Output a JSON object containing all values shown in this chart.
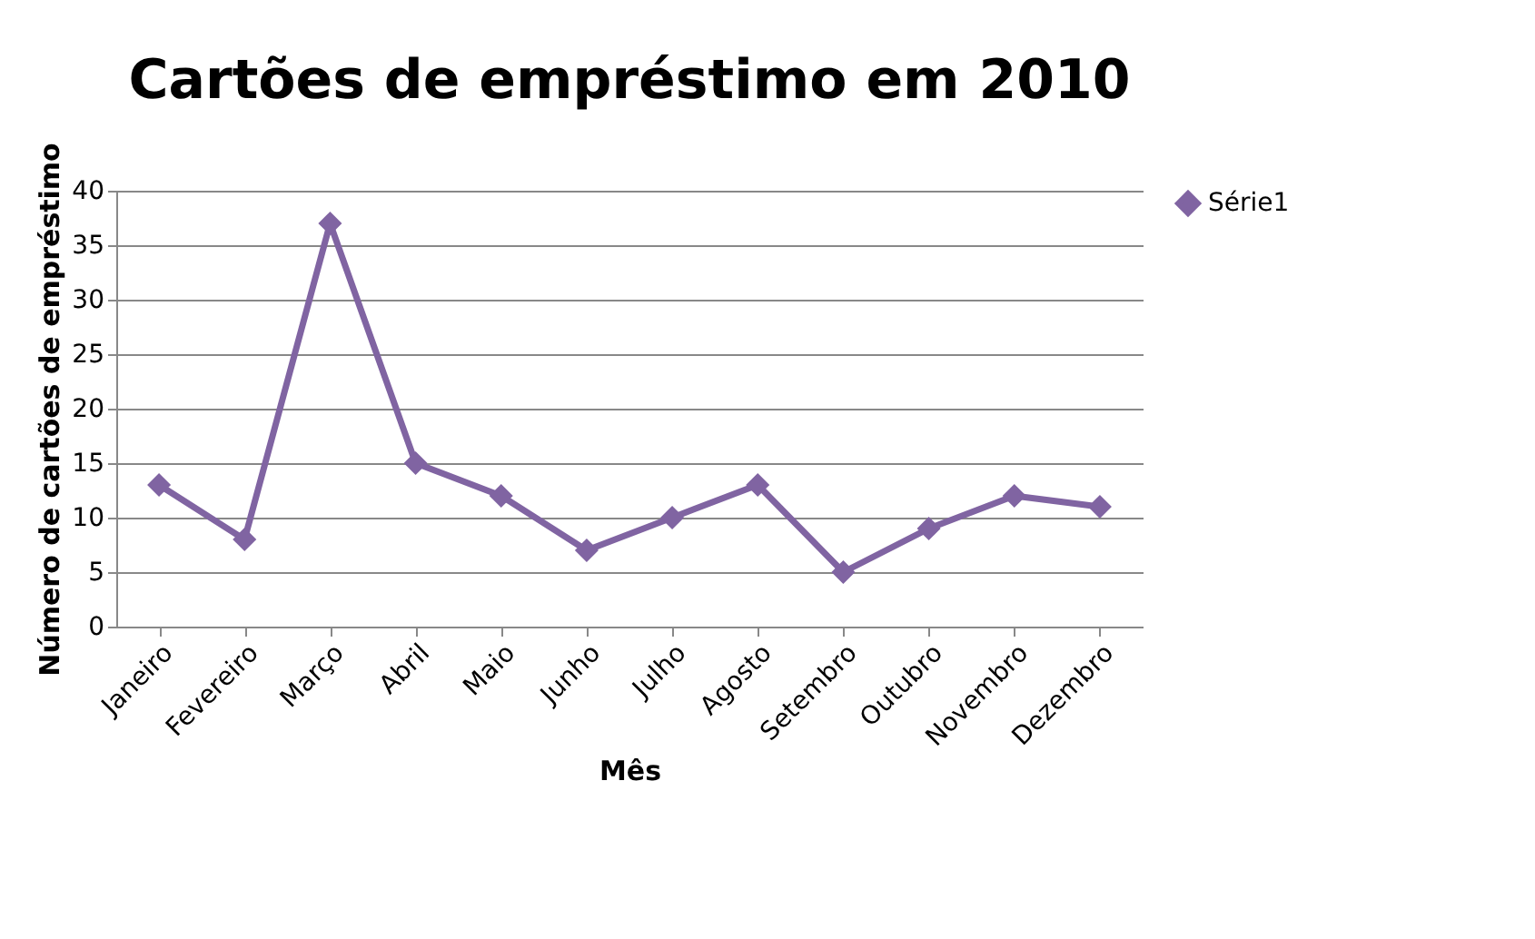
{
  "chart_data": {
    "type": "line",
    "title": "Cartões de empréstimo em 2010",
    "xlabel": "Mês",
    "ylabel": "Número de cartões de empréstimo",
    "categories": [
      "Janeiro",
      "Fevereiro",
      "Março",
      "Abril",
      "Maio",
      "Junho",
      "Julho",
      "Agosto",
      "Setembro",
      "Outubro",
      "Novembro",
      "Dezembro"
    ],
    "series": [
      {
        "name": "Série1",
        "color": "#8064a2",
        "values": [
          13,
          8,
          37,
          15,
          12,
          7,
          10,
          13,
          5,
          9,
          12,
          11
        ]
      }
    ],
    "ylim": [
      0,
      40
    ],
    "yticks": [
      0,
      5,
      10,
      15,
      20,
      25,
      30,
      35,
      40
    ],
    "grid": "y",
    "legend": "right",
    "marker": "diamond",
    "line_style": "solid"
  }
}
